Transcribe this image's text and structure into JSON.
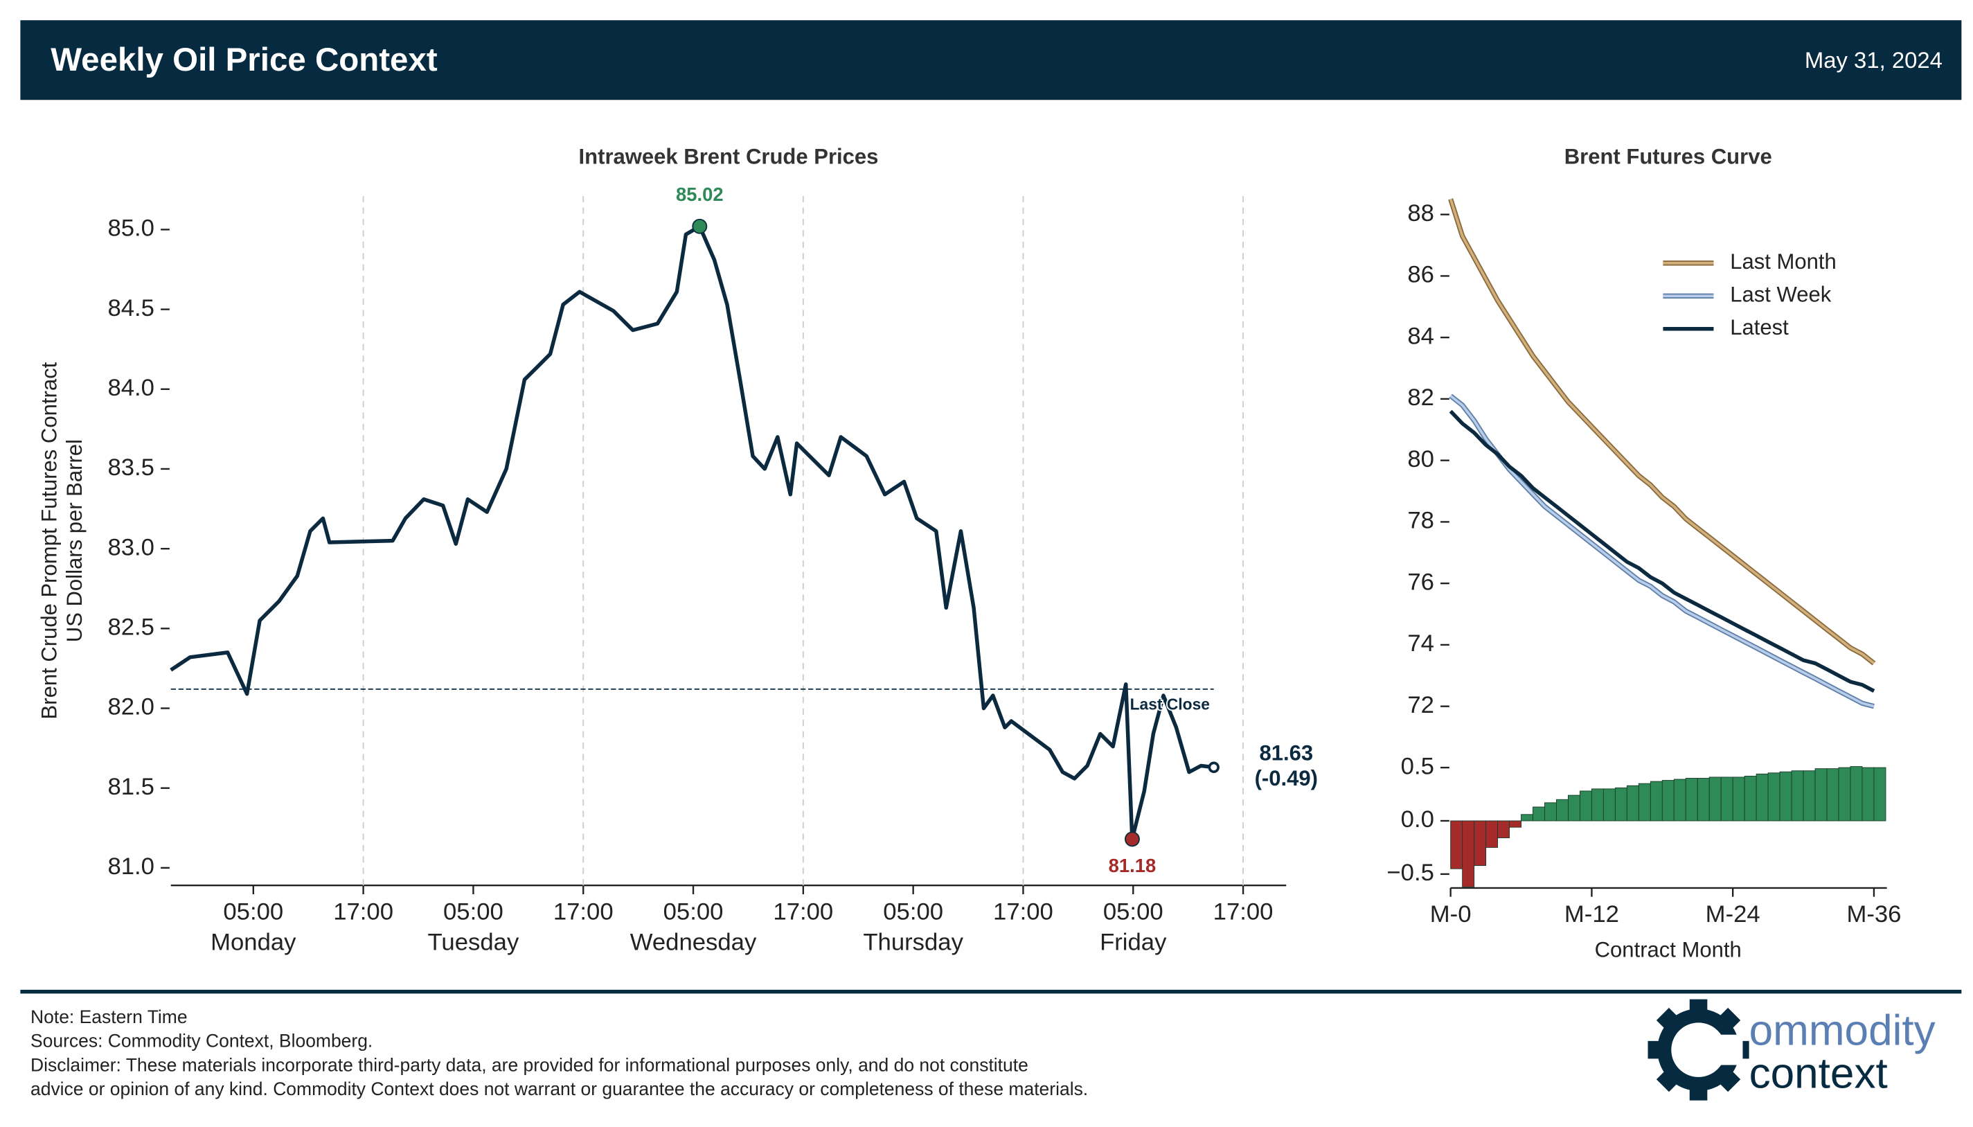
{
  "header": {
    "title": "Weekly Oil Price Context",
    "date": "May 31, 2024"
  },
  "chart_data": [
    {
      "type": "line",
      "title": "Intraweek Brent Crude Prices",
      "ylabel": [
        "Brent Crude Prompt Futures Contract",
        "US Dollars per Barrel"
      ],
      "x": [
        -4.0,
        -1.9,
        2.2,
        4.3,
        5.7,
        7.8,
        9.8,
        11.2,
        12.6,
        13.3,
        20.2,
        21.6,
        23.6,
        25.7,
        27.1,
        28.4,
        30.5,
        32.6,
        34.6,
        36.0,
        37.4,
        38.8,
        40.6,
        44.3,
        46.4,
        49.1,
        51.2,
        52.2,
        53.7,
        55.3,
        56.7,
        58.1,
        59.5,
        60.8,
        62.2,
        63.6,
        64.3,
        67.8,
        69.1,
        71.9,
        73.9,
        76.0,
        77.4,
        79.5,
        80.6,
        82.2,
        83.6,
        84.7,
        85.7,
        87.0,
        87.7,
        91.9,
        93.3,
        94.6,
        96.0,
        97.4,
        98.8,
        100.2,
        100.9,
        102.2,
        103.2,
        104.3,
        105.7,
        107.1,
        108.4,
        109.8
      ],
      "series": [
        {
          "color": "#0b2a40",
          "values": [
            82.24,
            82.32,
            82.35,
            82.09,
            82.55,
            82.67,
            82.83,
            83.11,
            83.19,
            83.04,
            83.05,
            83.19,
            83.31,
            83.27,
            83.03,
            83.31,
            83.23,
            83.5,
            84.06,
            84.14,
            84.22,
            84.53,
            84.61,
            84.49,
            84.37,
            84.41,
            84.61,
            84.97,
            85.02,
            84.81,
            84.53,
            84.06,
            83.58,
            83.5,
            83.7,
            83.34,
            83.66,
            83.46,
            83.7,
            83.58,
            83.34,
            83.42,
            83.19,
            83.11,
            82.63,
            83.11,
            82.63,
            82.0,
            82.08,
            81.88,
            81.92,
            81.74,
            81.6,
            81.56,
            81.64,
            81.84,
            81.76,
            82.15,
            81.18,
            81.48,
            81.84,
            82.08,
            81.88,
            81.6,
            81.64,
            81.63
          ]
        }
      ],
      "xlim": [
        -4.0,
        117.7
      ],
      "xticks": [
        {
          "value": 5,
          "label": "05:00"
        },
        {
          "value": 17,
          "label": "17:00"
        },
        {
          "value": 29,
          "label": "05:00"
        },
        {
          "value": 41,
          "label": "17:00"
        },
        {
          "value": 53,
          "label": "05:00"
        },
        {
          "value": 65,
          "label": "17:00"
        },
        {
          "value": 77,
          "label": "05:00"
        },
        {
          "value": 89,
          "label": "17:00"
        },
        {
          "value": 101,
          "label": "05:00"
        },
        {
          "value": 113,
          "label": "17:00"
        }
      ],
      "x_day_labels": [
        {
          "value": 5,
          "label": "Monday"
        },
        {
          "value": 29,
          "label": "Tuesday"
        },
        {
          "value": 53,
          "label": "Wednesday"
        },
        {
          "value": 77,
          "label": "Thursday"
        },
        {
          "value": 101,
          "label": "Friday"
        }
      ],
      "ylim": [
        80.89,
        85.21
      ],
      "yticks": [
        {
          "value": 81,
          "label": "81.0"
        },
        81.5,
        {
          "value": 82,
          "label": "82.0"
        },
        82.5,
        {
          "value": 83,
          "label": "83.0"
        },
        83.5,
        {
          "value": 84,
          "label": "84.0"
        },
        84.5,
        {
          "value": 85,
          "label": "85.0"
        }
      ],
      "last_close": {
        "value": 82.12,
        "label": "Last Close"
      },
      "change_label": "(-0.49)",
      "max_color": "#2e8b57",
      "min_color": "#a52a2a",
      "grid": "x-dashed"
    },
    {
      "type": "line",
      "title": "Brent Futures Curve",
      "xlabel": "Contract Month",
      "x": [
        0,
        1,
        2,
        3,
        4,
        5,
        6,
        7,
        8,
        9,
        10,
        11,
        12,
        13,
        14,
        15,
        16,
        17,
        18,
        19,
        20,
        21,
        22,
        23,
        24,
        25,
        26,
        27,
        28,
        29,
        30,
        31,
        32,
        33,
        34,
        35,
        36
      ],
      "xlim": [
        0,
        37.1
      ],
      "xticks": [
        {
          "value": 0,
          "label": "M-0"
        },
        {
          "value": 12,
          "label": "M-12"
        },
        {
          "value": 24,
          "label": "M-24"
        },
        {
          "value": 36,
          "label": "M-36"
        }
      ],
      "ylim": [
        70.7,
        88.6
      ],
      "yticks": [
        72,
        74,
        76,
        78,
        80,
        82,
        84,
        86,
        88
      ],
      "legend": "upper right",
      "series": [
        {
          "name": "Last Month",
          "color": "#d2b07c",
          "edge_color": "#8a6a3c",
          "values": [
            88.5,
            87.3,
            86.6,
            85.9,
            85.2,
            84.6,
            84.0,
            83.4,
            82.9,
            82.4,
            81.9,
            81.5,
            81.1,
            80.7,
            80.3,
            79.9,
            79.5,
            79.2,
            78.8,
            78.5,
            78.1,
            77.8,
            77.5,
            77.2,
            76.9,
            76.6,
            76.3,
            76.0,
            75.7,
            75.4,
            75.1,
            74.8,
            74.5,
            74.2,
            73.9,
            73.7,
            73.4
          ]
        },
        {
          "name": "Last Week",
          "color": "#b8cdea",
          "edge_color": "#5f7fa8",
          "values": [
            82.1,
            81.8,
            81.3,
            80.7,
            80.2,
            79.7,
            79.3,
            78.9,
            78.5,
            78.2,
            77.9,
            77.6,
            77.3,
            77.0,
            76.7,
            76.4,
            76.1,
            75.9,
            75.6,
            75.4,
            75.1,
            74.9,
            74.7,
            74.5,
            74.3,
            74.1,
            73.9,
            73.7,
            73.5,
            73.3,
            73.1,
            72.9,
            72.7,
            72.5,
            72.3,
            72.1,
            72.0
          ]
        },
        {
          "name": "Latest",
          "color": "#0b2a40",
          "values": [
            81.6,
            81.2,
            80.9,
            80.5,
            80.2,
            79.8,
            79.5,
            79.1,
            78.8,
            78.5,
            78.2,
            77.9,
            77.6,
            77.3,
            77.0,
            76.7,
            76.5,
            76.2,
            76.0,
            75.7,
            75.5,
            75.3,
            75.1,
            74.9,
            74.7,
            74.5,
            74.3,
            74.1,
            73.9,
            73.7,
            73.5,
            73.4,
            73.2,
            73.0,
            72.8,
            72.7,
            72.5
          ]
        }
      ]
    },
    {
      "type": "bar",
      "x": [
        0,
        1,
        2,
        3,
        4,
        5,
        6,
        7,
        8,
        9,
        10,
        11,
        12,
        13,
        14,
        15,
        16,
        17,
        18,
        19,
        20,
        21,
        22,
        23,
        24,
        25,
        26,
        27,
        28,
        29,
        30,
        31,
        32,
        33,
        34,
        35,
        36
      ],
      "values": [
        -0.45,
        -0.62,
        -0.42,
        -0.25,
        -0.16,
        -0.06,
        0.06,
        0.13,
        0.17,
        0.2,
        0.24,
        0.28,
        0.3,
        0.3,
        0.31,
        0.33,
        0.35,
        0.37,
        0.38,
        0.39,
        0.4,
        0.4,
        0.41,
        0.41,
        0.41,
        0.42,
        0.44,
        0.45,
        0.46,
        0.47,
        0.47,
        0.49,
        0.49,
        0.5,
        0.51,
        0.5,
        0.5
      ],
      "positive_color": "#2e8b57",
      "negative_color": "#a52a2a",
      "xlim": [
        0,
        37.1
      ],
      "xticks": [
        {
          "value": 0,
          "label": "M-0"
        },
        {
          "value": 12,
          "label": "M-12"
        },
        {
          "value": 24,
          "label": "M-24"
        },
        {
          "value": 36,
          "label": "M-36"
        }
      ],
      "ylim": [
        -0.63,
        0.7
      ],
      "yticks": [
        {
          "value": -0.5,
          "label": "−0.5"
        },
        {
          "value": 0,
          "label": "0.0"
        },
        0.5
      ]
    }
  ],
  "footer": {
    "notes": [
      "Note: Eastern Time",
      "Sources: Commodity Context, Bloomberg.",
      "Disclaimer: These materials incorporate third-party data, are provided for informational purposes only, and do not constitute",
      "advice or opinion of any kind. Commodity Context does not warrant or guarantee the accuracy or completeness of these materials."
    ]
  },
  "logo": {
    "line1": "ommodity",
    "line2": "context"
  }
}
